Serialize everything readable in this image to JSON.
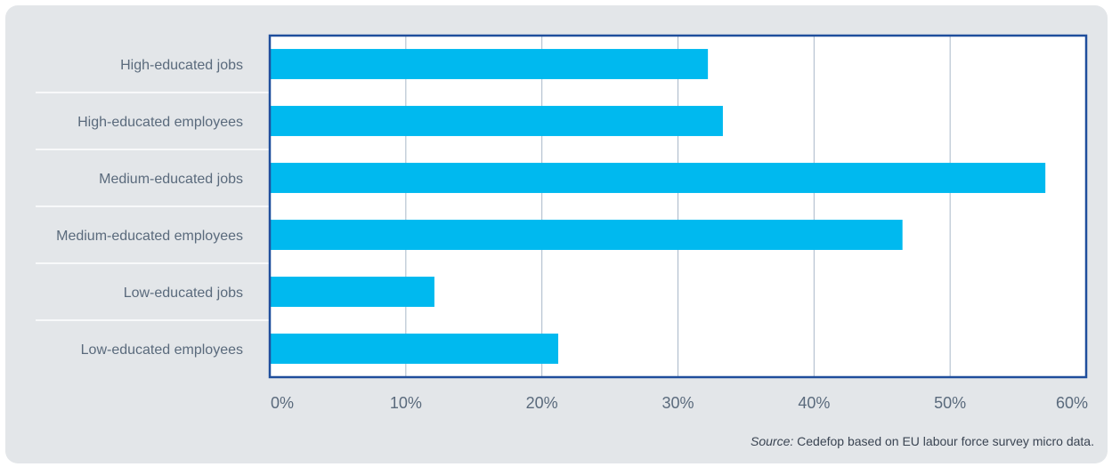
{
  "chart_data": {
    "type": "bar",
    "orientation": "horizontal",
    "categories": [
      "High-educated jobs",
      "High-educated employees",
      "Medium-educated jobs",
      "Medium-educated employees",
      "Low-educated jobs",
      "Low-educated employees"
    ],
    "values": [
      32.2,
      33.3,
      57.0,
      46.5,
      12.1,
      21.2
    ],
    "xlim": [
      0,
      60
    ],
    "x_ticks": [
      0,
      10,
      20,
      30,
      40,
      50,
      60
    ],
    "x_tick_labels": [
      "0%",
      "10%",
      "20%",
      "30%",
      "40%",
      "50%",
      "60%"
    ],
    "grid": true,
    "bar_color": "#00b9ef",
    "frame_color": "#1f4e9c",
    "grid_color": "#a9b8c9"
  },
  "source": {
    "prefix": "Source:",
    "text": "Cedefop based on EU labour force survey micro data."
  }
}
